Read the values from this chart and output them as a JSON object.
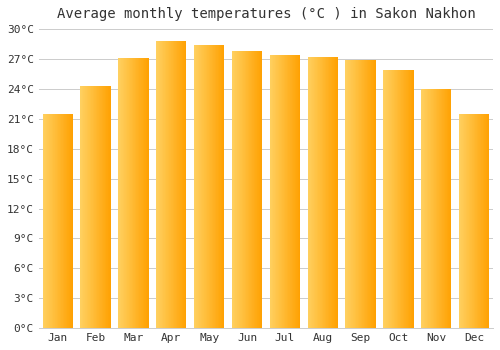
{
  "title": "Average monthly temperatures (°C ) in Sakon Nakhon",
  "months": [
    "Jan",
    "Feb",
    "Mar",
    "Apr",
    "May",
    "Jun",
    "Jul",
    "Aug",
    "Sep",
    "Oct",
    "Nov",
    "Dec"
  ],
  "values": [
    21.5,
    24.3,
    27.1,
    28.8,
    28.4,
    27.8,
    27.4,
    27.2,
    26.9,
    25.9,
    24.0,
    21.5
  ],
  "bar_color_left": "#FFD060",
  "bar_color_right": "#FFA000",
  "background_color": "#FFFFFF",
  "plot_bg_color": "#FFFFFF",
  "grid_color": "#CCCCCC",
  "text_color": "#333333",
  "title_fontsize": 10,
  "tick_fontsize": 8,
  "ylim": [
    0,
    30
  ],
  "yticks": [
    0,
    3,
    6,
    9,
    12,
    15,
    18,
    21,
    24,
    27,
    30
  ],
  "bar_width": 0.8
}
